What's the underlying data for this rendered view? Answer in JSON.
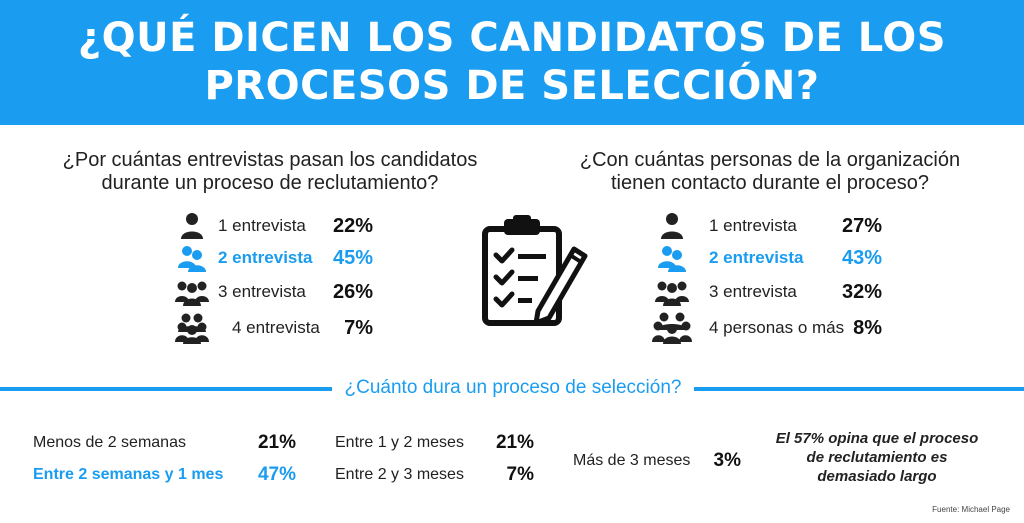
{
  "header": {
    "title_line1": "¿QUÉ DICEN LOS CANDIDATOS DE LOS",
    "title_line2": "PROCESOS DE SELECCIÓN?",
    "background_color": "#1a9cf0"
  },
  "interviews": {
    "question": "¿Por cuántas entrevistas pasan los candidatos durante un proceso de reclutamiento?",
    "items": [
      {
        "icon": "person-icon",
        "label": "1 entrevista",
        "value": "22%",
        "highlight": false
      },
      {
        "icon": "two-people-icon",
        "label": "2 entrevista",
        "value": "45%",
        "highlight": true
      },
      {
        "icon": "three-people-icon",
        "label": "3 entrevista",
        "value": "26%",
        "highlight": false
      },
      {
        "icon": "four-people-icon",
        "label": "4 entrevista",
        "value": "7%",
        "highlight": false
      }
    ]
  },
  "contacts": {
    "question": "¿Con cuántas personas de la organización tienen contacto durante el proceso?",
    "items": [
      {
        "icon": "person-icon",
        "label": "1 entrevista",
        "value": "27%",
        "highlight": false
      },
      {
        "icon": "two-people-icon",
        "label": "2 entrevista",
        "value": "43%",
        "highlight": true
      },
      {
        "icon": "three-people-icon",
        "label": "3 entrevista",
        "value": "32%",
        "highlight": false
      },
      {
        "icon": "group-people-icon",
        "label": "4 personas o más",
        "value": "8%",
        "highlight": false
      }
    ]
  },
  "center_icon": "clipboard-checklist-icon",
  "duration": {
    "question": "¿Cuánto dura un proceso de selección?",
    "items": [
      {
        "label": "Menos de 2 semanas",
        "value": "21%",
        "highlight": false
      },
      {
        "label": "Entre 2 semanas y 1 mes",
        "value": "47%",
        "highlight": true
      },
      {
        "label": "Entre 1 y 2 meses",
        "value": "21%",
        "highlight": false
      },
      {
        "label": "Entre 2 y 3 meses",
        "value": "7%",
        "highlight": false
      },
      {
        "label": "Más de 3 meses",
        "value": "3%",
        "highlight": false
      }
    ],
    "note": "El 57% opina que el proceso de reclutamiento es demasiado largo"
  },
  "source": "Fuente: Michael Page",
  "colors": {
    "accent": "#1a9cf0",
    "text": "#222222"
  }
}
